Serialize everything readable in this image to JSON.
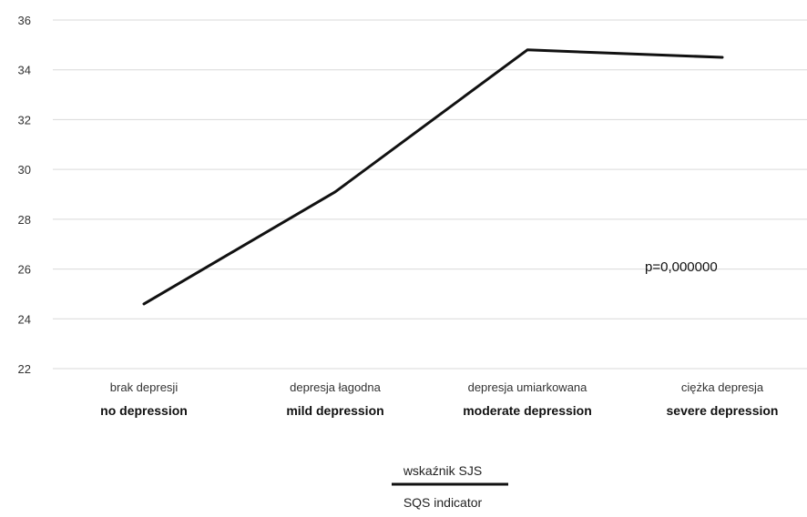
{
  "chart_data": {
    "type": "line",
    "categories": [
      [
        "brak depresji",
        "no depression"
      ],
      [
        "depresja łagodna",
        "mild depression"
      ],
      [
        "depresja umiarkowana",
        "moderate depression"
      ],
      [
        "ciężka depresja",
        "severe depression"
      ]
    ],
    "series": [
      {
        "values": [
          24.6,
          29.1,
          34.8,
          34.5
        ]
      }
    ],
    "ylim": [
      22,
      36
    ],
    "yticks": [
      22,
      24,
      26,
      28,
      30,
      32,
      34,
      36
    ],
    "grid": true,
    "annotation": "p=0,000000",
    "legend": {
      "position": "bottom",
      "entries": [
        "wskaźnik SJS",
        "SQS indicator"
      ]
    },
    "colors": {
      "line": "#111111",
      "grid": "#d9d9d9",
      "text": "#333333"
    }
  }
}
